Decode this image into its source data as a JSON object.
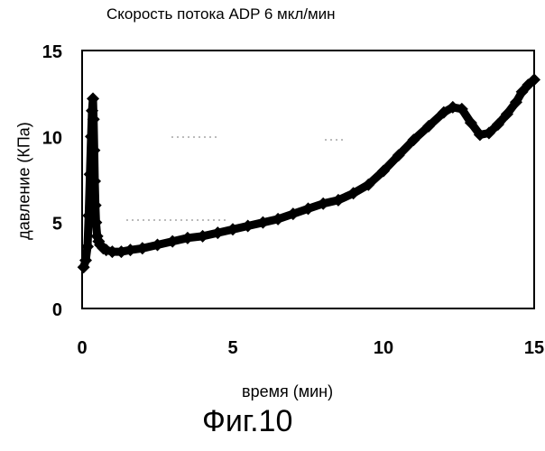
{
  "chart_data": {
    "type": "scatter",
    "title": "Скорость потока ADP 6 мкл/мин",
    "xlabel": "время (мин)",
    "ylabel": "давление (КПа)",
    "caption": "Фиг.10",
    "xlim": [
      0,
      15
    ],
    "ylim": [
      0,
      15
    ],
    "x_ticks": [
      0,
      5,
      10,
      15
    ],
    "y_ticks": [
      0,
      5,
      10,
      15
    ],
    "grid": false,
    "series": [
      {
        "name": "давление",
        "marker": "diamond",
        "x": [
          0.05,
          0.12,
          0.18,
          0.22,
          0.26,
          0.3,
          0.33,
          0.36,
          0.38,
          0.4,
          0.42,
          0.44,
          0.46,
          0.5,
          0.55,
          0.6,
          0.7,
          0.8,
          1.0,
          1.3,
          1.6,
          2.0,
          2.5,
          3.0,
          3.5,
          4.0,
          4.5,
          5.0,
          5.5,
          6.0,
          6.5,
          7.0,
          7.5,
          8.0,
          8.5,
          9.0,
          9.5,
          10.0,
          10.5,
          11.0,
          11.5,
          12.0,
          12.3,
          12.6,
          12.9,
          13.2,
          13.5,
          13.8,
          14.1,
          14.4,
          14.6,
          14.8,
          15.0
        ],
        "y": [
          2.4,
          2.8,
          3.6,
          5.4,
          7.8,
          10.0,
          11.5,
          12.2,
          11.0,
          9.2,
          7.4,
          6.0,
          5.0,
          4.2,
          3.9,
          3.7,
          3.5,
          3.4,
          3.3,
          3.3,
          3.4,
          3.5,
          3.7,
          3.9,
          4.1,
          4.2,
          4.4,
          4.6,
          4.8,
          5.0,
          5.2,
          5.5,
          5.8,
          6.1,
          6.3,
          6.7,
          7.2,
          8.0,
          8.9,
          9.8,
          10.6,
          11.4,
          11.7,
          11.6,
          10.8,
          10.1,
          10.2,
          10.7,
          11.3,
          12.0,
          12.6,
          13.0,
          13.3
        ]
      }
    ]
  }
}
